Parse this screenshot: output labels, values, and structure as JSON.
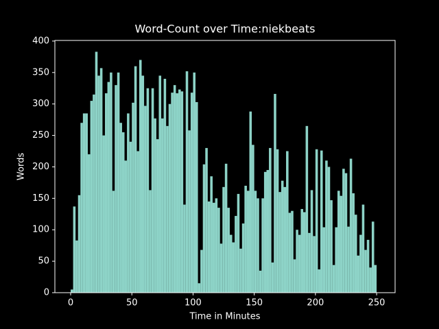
{
  "chart_data": {
    "type": "histogram",
    "title": "Word-Count over Time:niekbeats",
    "xlabel": "Time in Minutes",
    "ylabel": "Words",
    "color": "#8dd3c7",
    "bins": [
      0,
      2,
      4,
      6,
      8,
      10,
      12,
      14,
      16,
      18,
      20,
      22,
      24,
      26,
      28,
      30,
      32,
      34,
      36,
      38,
      40,
      42,
      44,
      46,
      48,
      50,
      52,
      54,
      56,
      58,
      60,
      62,
      64,
      66,
      68,
      70,
      72,
      74,
      76,
      78,
      80,
      82,
      84,
      86,
      88,
      90,
      92,
      94,
      96,
      98,
      100,
      102,
      104,
      106,
      108,
      110,
      112,
      114,
      116,
      118,
      120,
      122,
      124,
      126,
      128,
      130,
      132,
      134,
      136,
      138,
      140,
      142,
      144,
      146,
      148,
      150,
      152,
      154,
      156,
      158,
      160,
      162,
      164,
      166,
      168,
      170,
      172,
      174,
      176,
      178,
      180,
      182,
      184,
      186,
      188,
      190,
      192,
      194,
      196,
      198,
      200,
      202,
      204,
      206,
      208,
      210,
      212,
      214,
      216,
      218,
      220,
      222,
      224,
      226,
      228,
      230,
      232,
      234,
      236,
      238,
      240,
      242,
      244,
      246,
      248,
      250
    ],
    "values": [
      5,
      137,
      83,
      155,
      270,
      285,
      285,
      220,
      305,
      315,
      383,
      345,
      357,
      250,
      317,
      335,
      350,
      162,
      330,
      350,
      270,
      255,
      210,
      285,
      240,
      302,
      360,
      225,
      370,
      345,
      297,
      325,
      163,
      325,
      277,
      244,
      345,
      277,
      340,
      265,
      300,
      318,
      330,
      317,
      323,
      320,
      140,
      352,
      258,
      318,
      350,
      303,
      15,
      68,
      204,
      230,
      145,
      185,
      143,
      150,
      135,
      78,
      168,
      205,
      135,
      92,
      80,
      122,
      157,
      70,
      110,
      170,
      162,
      288,
      235,
      162,
      150,
      35,
      150,
      192,
      195,
      230,
      48,
      316,
      228,
      160,
      178,
      168,
      225,
      127,
      130,
      53,
      100,
      92,
      133,
      128,
      265,
      95,
      163,
      90,
      228,
      37,
      226,
      104,
      210,
      200,
      147,
      44,
      104,
      162,
      154,
      197,
      190,
      105,
      213,
      158,
      124,
      59,
      92,
      140,
      68,
      84,
      40,
      113,
      44
    ],
    "xlim": [
      -12.9,
      265.1
    ],
    "xticks": [
      0,
      50,
      100,
      150,
      200,
      250
    ],
    "ylim": [
      0,
      401
    ],
    "yticks": [
      0,
      50,
      100,
      150,
      200,
      250,
      300,
      350,
      400
    ]
  }
}
